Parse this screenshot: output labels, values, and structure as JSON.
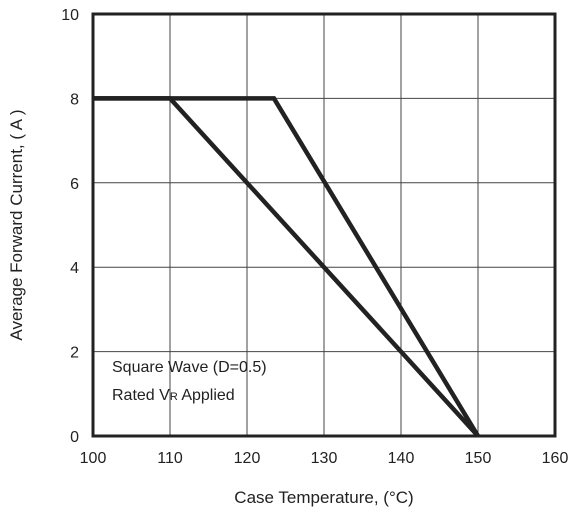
{
  "chart_data": {
    "type": "line",
    "xlabel": "Case Temperature, (°C)",
    "ylabel": "Average Forward Current, ( A )",
    "xlim": [
      100,
      160
    ],
    "ylim": [
      0,
      10
    ],
    "xticks": [
      100,
      110,
      120,
      130,
      140,
      150,
      160
    ],
    "yticks": [
      0,
      2,
      4,
      6,
      8,
      10
    ],
    "grid": true,
    "series": [
      {
        "x": [
          100,
          110,
          150
        ],
        "y": [
          8,
          8,
          0
        ]
      },
      {
        "x": [
          100,
          123.5,
          150
        ],
        "y": [
          8,
          8,
          0
        ]
      }
    ],
    "annotation": {
      "line1": "Square Wave (D=0.5)",
      "line2_prefix": "Rated V",
      "line2_sub": "R",
      "line2_suffix": " Applied"
    }
  }
}
